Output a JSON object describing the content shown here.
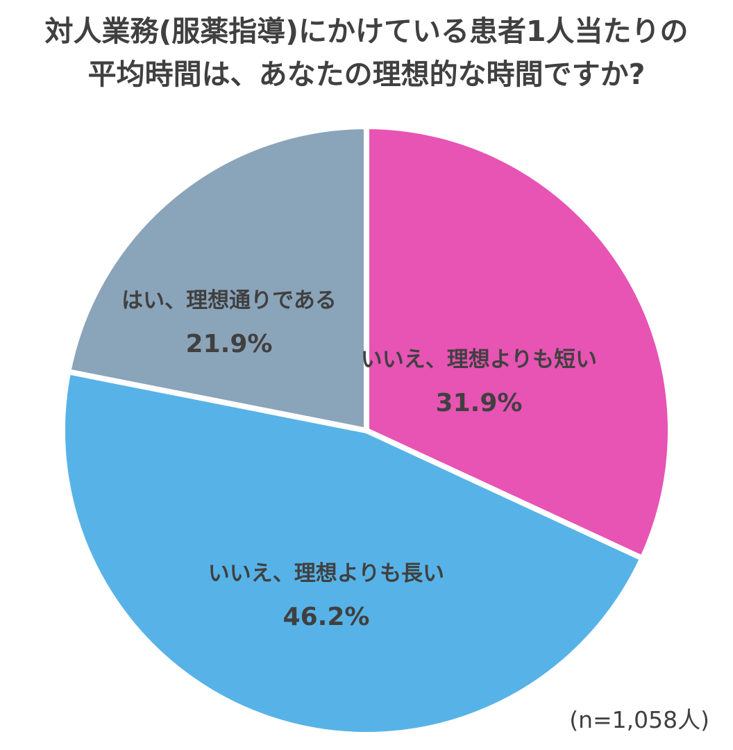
{
  "chart_data": {
    "type": "pie",
    "title_lines": [
      "対人業務(服薬指導)にかけている患者1人当たりの",
      "平均時間は、あなたの理想的な時間ですか?"
    ],
    "slices": [
      {
        "label": "いいえ、理想よりも短い",
        "value": 31.9,
        "value_label": "31.9%",
        "color": "#E754B4"
      },
      {
        "label": "いいえ、理想よりも長い",
        "value": 46.2,
        "value_label": "46.2%",
        "color": "#57B3E7"
      },
      {
        "label": "はい、理想通りである",
        "value": 21.9,
        "value_label": "21.9%",
        "color": "#8AA4BA"
      }
    ],
    "start_angle_deg": 0,
    "direction": "clockwise",
    "sample_note": "(n=1,058人)"
  }
}
